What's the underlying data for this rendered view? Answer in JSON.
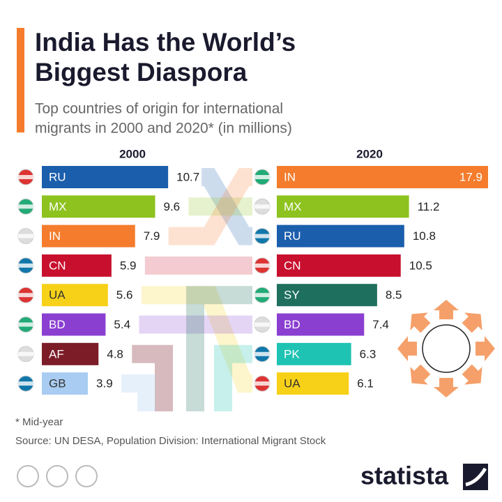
{
  "title": [
    "India Has the World’s",
    "Biggest Diaspora"
  ],
  "subtitle": [
    "Top countries of origin for international",
    "migrants in 2000 and 2020* (in millions)"
  ],
  "chart_data": [
    {
      "type": "bar",
      "orientation": "horizontal",
      "title": "2000",
      "categories": [
        "RU",
        "MX",
        "IN",
        "CN",
        "UA",
        "BD",
        "AF",
        "GB"
      ],
      "values": [
        10.7,
        9.6,
        7.9,
        5.9,
        5.6,
        5.4,
        4.8,
        3.9
      ],
      "colors": [
        "#1b5eac",
        "#8dc21f",
        "#f47c2c",
        "#c8102e",
        "#f7d117",
        "#8a3fd1",
        "#7b1c27",
        "#a9cdf2"
      ]
    },
    {
      "type": "bar",
      "orientation": "horizontal",
      "title": "2020",
      "categories": [
        "IN",
        "MX",
        "RU",
        "CN",
        "SY",
        "BD",
        "PK",
        "UA"
      ],
      "values": [
        17.9,
        11.2,
        10.8,
        10.5,
        8.5,
        7.4,
        6.3,
        6.1
      ],
      "colors": [
        "#f47c2c",
        "#8dc21f",
        "#1b5eac",
        "#c8102e",
        "#1f6f5f",
        "#8a3fd1",
        "#1ec3b3",
        "#f7d117"
      ]
    }
  ],
  "note": "* Mid-year",
  "source": "Source: UN DESA, Population Division: International Migrant Stock",
  "brand": "statista"
}
